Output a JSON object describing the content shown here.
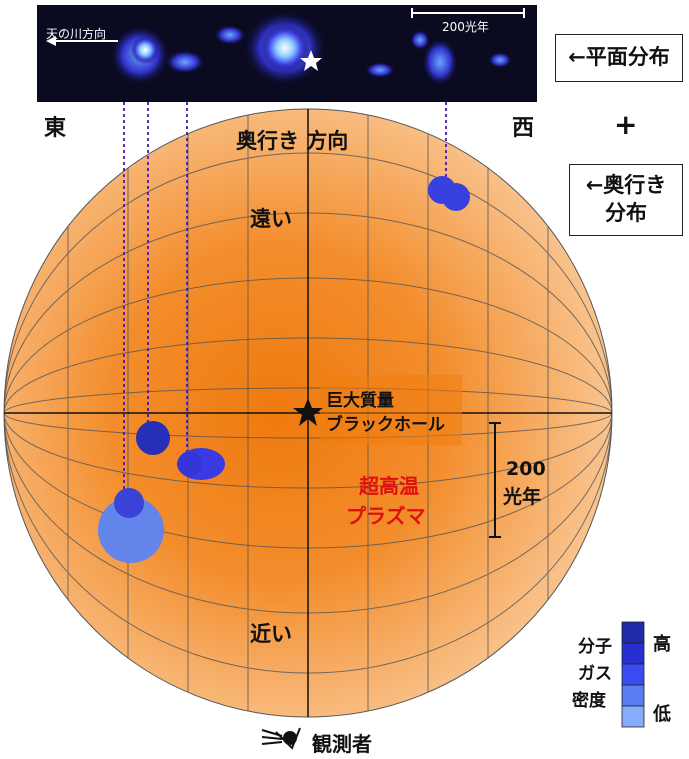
{
  "banner": {
    "milky_way_label": "天の川方向",
    "scale_label": "200光年"
  },
  "side_labels": {
    "east": "東",
    "west": "西",
    "plane_box": "←平面分布",
    "plus": "+",
    "depth_box_line1": "←奥行き",
    "depth_box_line2": "分布"
  },
  "sphere": {
    "depth_direction": "奥行き 方向",
    "far": "遠い",
    "near": "近い",
    "black_hole_line1": "巨大質量",
    "black_hole_line2": "ブラックホール",
    "plasma_line1": "超高温",
    "plasma_line2": "プラズマ",
    "scale_value": "200",
    "scale_unit": "光年",
    "observer": "観測者"
  },
  "legend": {
    "title_line1": "分子",
    "title_line2": "ガス",
    "title_line3": "密度",
    "high": "高",
    "low": "低",
    "colors": [
      "#1f2aa8",
      "#2630d2",
      "#3a4cf0",
      "#5a7cf5",
      "#86acfb"
    ]
  },
  "colors": {
    "plasma_label": "#e01010",
    "guide_line": "#4a18a8",
    "sphere_edge": "#f1a65a",
    "sphere_core": "#f07d10"
  }
}
